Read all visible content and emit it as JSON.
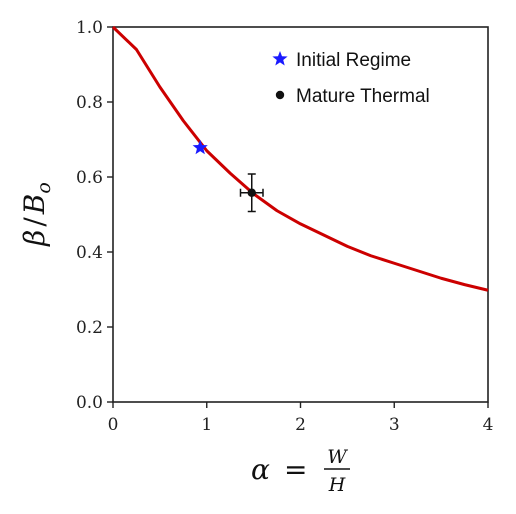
{
  "chart_data": {
    "type": "line",
    "xlabel": "α = W/H",
    "ylabel": "β / B_o",
    "xlabel_parts": {
      "lhs": "α",
      "eq": "=",
      "num": "W",
      "den": "H"
    },
    "ylabel_parts": {
      "num": "β",
      "slash": "/",
      "den": "B",
      "sub": "o"
    },
    "xlim": [
      0,
      4
    ],
    "ylim": [
      0,
      1.0
    ],
    "xticks": [
      "0",
      "1",
      "2",
      "3",
      "4"
    ],
    "yticks": [
      "0.0",
      "0.2",
      "0.4",
      "0.6",
      "0.8",
      "1.0"
    ],
    "grid": false,
    "legend_position": "top-right",
    "series": [
      {
        "kind": "curve",
        "color": "#cc0000",
        "x": [
          0,
          0.25,
          0.5,
          0.75,
          1.0,
          1.25,
          1.5,
          1.75,
          2.0,
          2.25,
          2.5,
          2.75,
          3.0,
          3.25,
          3.5,
          3.75,
          4.0
        ],
        "y": [
          1.0,
          0.94,
          0.84,
          0.75,
          0.67,
          0.61,
          0.555,
          0.51,
          0.475,
          0.445,
          0.415,
          0.39,
          0.37,
          0.35,
          0.33,
          0.313,
          0.298
        ]
      },
      {
        "kind": "point",
        "name": "Initial Regime",
        "marker": "star",
        "color": "#1a1aff",
        "x": 0.93,
        "y": 0.678
      },
      {
        "kind": "point",
        "name": "Mature Thermal",
        "marker": "circle",
        "color": "#111111",
        "x": 1.48,
        "y": 0.558,
        "xerr": 0.12,
        "yerr": 0.05
      }
    ]
  }
}
